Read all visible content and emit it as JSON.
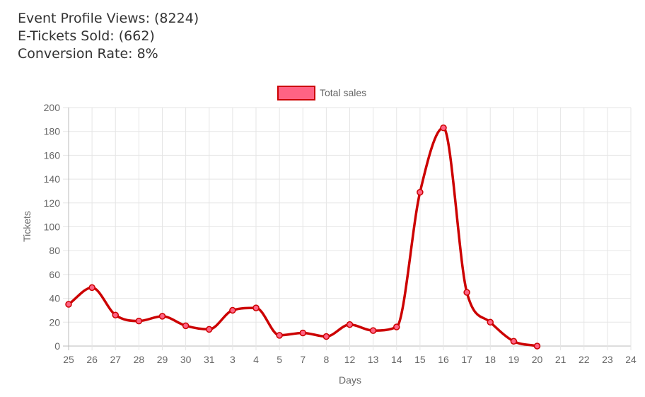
{
  "stats": {
    "profile_views": "Event Profile Views: (8224)",
    "tickets_sold": "E-Tickets Sold: (662)",
    "conversion_rate": "Conversion Rate: 8%"
  },
  "chart_data": {
    "type": "line",
    "title": "",
    "xlabel": "Days",
    "ylabel": "Tickets",
    "ylim": [
      0,
      200
    ],
    "y_step": 20,
    "grid": true,
    "legend_position": "top",
    "categories": [
      "25",
      "26",
      "27",
      "28",
      "29",
      "30",
      "31",
      "3",
      "4",
      "5",
      "7",
      "8",
      "12",
      "13",
      "14",
      "15",
      "16",
      "17",
      "18",
      "19",
      "20",
      "21",
      "22",
      "23",
      "24"
    ],
    "series": [
      {
        "name": "Total sales",
        "values": [
          35,
          49,
          26,
          21,
          25,
          17,
          14,
          30,
          32,
          9,
          11,
          8,
          18,
          13,
          16,
          129,
          183,
          45,
          20,
          4,
          0,
          null,
          null,
          null,
          null
        ],
        "line_color": "#cc0000",
        "point_fill": "#ff6384"
      }
    ]
  }
}
